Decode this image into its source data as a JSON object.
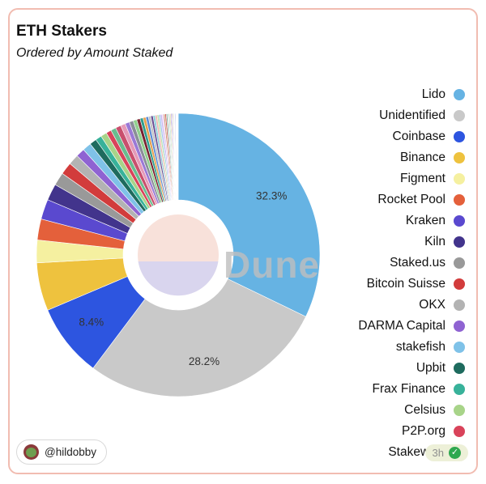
{
  "header": {
    "title": "ETH Stakers",
    "subtitle": "Ordered by Amount Staked"
  },
  "watermark": "Dune",
  "footer": {
    "handle": "@hildobby",
    "avatar_icon": "frog-icon",
    "timestamp": "3h",
    "check_icon": "verified-check-icon",
    "check_color": "#2fa84f"
  },
  "chart_data": {
    "type": "pie",
    "variant": "donut",
    "title": "ETH Stakers",
    "subtitle": "Ordered by Amount Staked",
    "values_unit": "%",
    "direction": "clockwise",
    "start_angle_deg": 0,
    "legend_position": "right",
    "label_threshold_pct": 8,
    "labeled_slices": [
      {
        "name": "Lido",
        "label": "32.3%"
      },
      {
        "name": "Unidentified",
        "label": "28.2%"
      },
      {
        "name": "Coinbase",
        "label": "8.4%"
      }
    ],
    "series": [
      {
        "name": "Lido",
        "value": 32.3,
        "color": "#66b3e3"
      },
      {
        "name": "Unidentified",
        "value": 28.2,
        "color": "#c9c9c9"
      },
      {
        "name": "Coinbase",
        "value": 8.4,
        "color": "#2d55e0"
      },
      {
        "name": "Binance",
        "value": 5.5,
        "color": "#eec23e"
      },
      {
        "name": "Figment",
        "value": 2.6,
        "color": "#f5f0a0"
      },
      {
        "name": "Rocket Pool",
        "value": 2.4,
        "color": "#e4603b"
      },
      {
        "name": "Kraken",
        "value": 2.3,
        "color": "#5a49cf"
      },
      {
        "name": "Kiln",
        "value": 1.9,
        "color": "#42348c"
      },
      {
        "name": "Staked.us",
        "value": 1.5,
        "color": "#999999"
      },
      {
        "name": "Bitcoin Suisse",
        "value": 1.4,
        "color": "#d23c3c"
      },
      {
        "name": "OKX",
        "value": 1.2,
        "color": "#b3b3b3"
      },
      {
        "name": "DARMA Capital",
        "value": 1.0,
        "color": "#8f63d2"
      },
      {
        "name": "stakefish",
        "value": 1.0,
        "color": "#7fc2e8"
      },
      {
        "name": "Upbit",
        "value": 0.8,
        "color": "#1e6b5e"
      },
      {
        "name": "Frax Finance",
        "value": 0.7,
        "color": "#38b29a"
      },
      {
        "name": "Celsius",
        "value": 0.7,
        "color": "#a8d489"
      },
      {
        "name": "P2P.org",
        "value": 0.6,
        "color": "#d9435a"
      },
      {
        "name": "Stakewise",
        "value": 0.6,
        "color": "#69bd8f"
      }
    ],
    "others_unlabeled": [
      {
        "value": 0.62,
        "color": "#c94f6d"
      },
      {
        "value": 0.55,
        "color": "#e59ab8"
      },
      {
        "value": 0.5,
        "color": "#9a79d6"
      },
      {
        "value": 0.46,
        "color": "#8a8f98"
      },
      {
        "value": 0.42,
        "color": "#90d08e"
      },
      {
        "value": 0.38,
        "color": "#7a2230"
      },
      {
        "value": 0.35,
        "color": "#2f9e8f"
      },
      {
        "value": 0.32,
        "color": "#e8a04c"
      },
      {
        "value": 0.3,
        "color": "#5a8bd6"
      },
      {
        "value": 0.28,
        "color": "#c4c4c4"
      },
      {
        "value": 0.26,
        "color": "#6a4c93"
      },
      {
        "value": 0.24,
        "color": "#86ccd9"
      },
      {
        "value": 0.22,
        "color": "#f0b3ad"
      },
      {
        "value": 0.2,
        "color": "#b8e0a8"
      },
      {
        "value": 0.19,
        "color": "#a3c2f0"
      },
      {
        "value": 0.18,
        "color": "#c4b5f0"
      },
      {
        "value": 0.17,
        "color": "#efc4ef"
      },
      {
        "value": 0.16,
        "color": "#c79a6b"
      },
      {
        "value": 0.15,
        "color": "#d45858"
      },
      {
        "value": 0.14,
        "color": "#77b3a0"
      },
      {
        "value": 0.13,
        "color": "#d8d8d8"
      },
      {
        "value": 0.12,
        "color": "#9fd4c0"
      },
      {
        "value": 0.11,
        "color": "#e0d890"
      },
      {
        "value": 0.1,
        "color": "#b06ac9"
      },
      {
        "value": 0.09,
        "color": "#6aa5e0"
      },
      {
        "value": 0.08,
        "color": "#e27d5f"
      },
      {
        "value": 0.07,
        "color": "#8f8f8f"
      },
      {
        "value": 0.06,
        "color": "#74c9b4"
      },
      {
        "value": 0.05,
        "color": "#d9a0d0"
      },
      {
        "value": 0.1,
        "color": "#aab6e8"
      },
      {
        "value": 0.3,
        "color": "#ffffff"
      }
    ]
  }
}
